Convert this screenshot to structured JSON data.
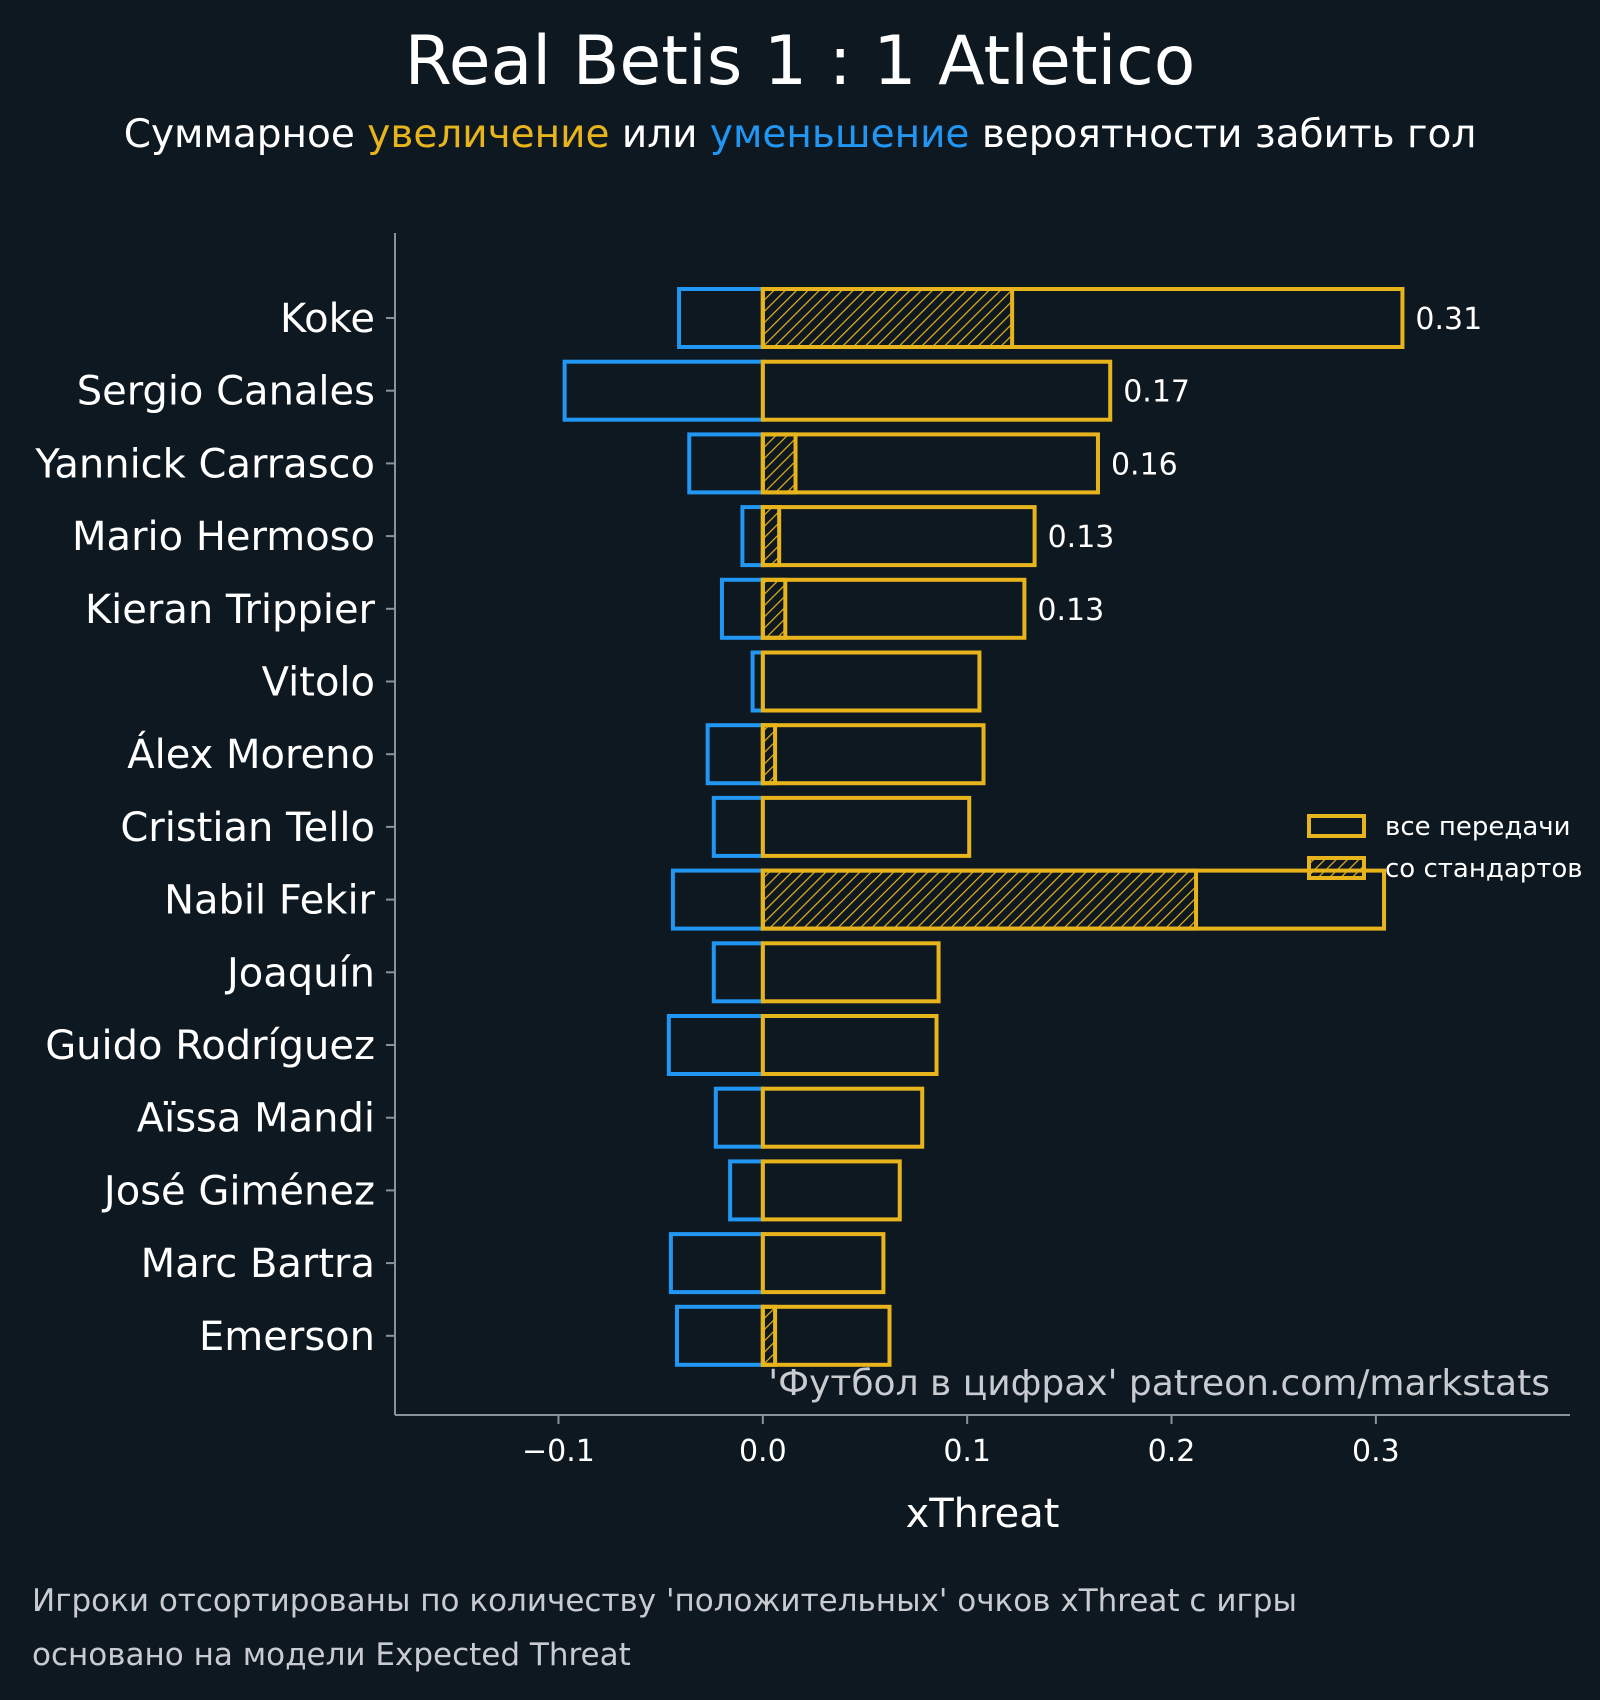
{
  "title": "Real Betis 1 : 1 Atletico",
  "subtitle": {
    "prefix": "Суммарное ",
    "increase": "увеличение",
    "middle": " или ",
    "decrease": "уменьшение",
    "suffix": " вероятности забить гол"
  },
  "colors": {
    "background": "#0e1821",
    "increase": "#e8b41c",
    "decrease": "#2196f3",
    "axis": "#8a9299",
    "text": "#ffffff",
    "muted": "#c8cbd0"
  },
  "chart_data": {
    "type": "bar",
    "orientation": "horizontal",
    "xlabel": "xThreat",
    "xlim": [
      -0.18,
      0.395
    ],
    "xticks": [
      -0.1,
      0.0,
      0.1,
      0.2,
      0.3
    ],
    "xtick_labels": [
      "−0.1",
      "0.0",
      "0.1",
      "0.2",
      "0.3"
    ],
    "categories": [
      "Koke",
      "Sergio Canales",
      "Yannick Carrasco",
      "Mario Hermoso",
      "Kieran Trippier",
      "Vitolo",
      "Álex Moreno",
      "Cristian Tello",
      "Nabil Fekir",
      "Joaquín",
      "Guido Rodríguez",
      "Aïssa Mandi",
      "José Giménez",
      "Marc Bartra",
      "Emerson"
    ],
    "series": [
      {
        "name": "negative",
        "color": "#2196f3",
        "values": [
          -0.041,
          -0.097,
          -0.036,
          -0.01,
          -0.02,
          -0.005,
          -0.027,
          -0.024,
          -0.044,
          -0.024,
          -0.046,
          -0.023,
          -0.016,
          -0.045,
          -0.042
        ]
      },
      {
        "name": "все передачи",
        "color": "#e8b41c",
        "values": [
          0.313,
          0.17,
          0.164,
          0.133,
          0.128,
          0.106,
          0.108,
          0.101,
          0.304,
          0.086,
          0.085,
          0.078,
          0.067,
          0.059,
          0.062
        ]
      },
      {
        "name": "со стандартов",
        "color": "#e8b41c",
        "hatched": true,
        "values": [
          0.122,
          0.0,
          0.016,
          0.008,
          0.011,
          0.0,
          0.006,
          0.0,
          0.212,
          0.0,
          0.0,
          0.0,
          0.0,
          0.0,
          0.006
        ]
      }
    ],
    "value_labels": [
      "0.31",
      "0.17",
      "0.16",
      "0.13",
      "0.13",
      "",
      "",
      "",
      "",
      "",
      "",
      "",
      "",
      "",
      ""
    ],
    "legend": {
      "position": "right",
      "entries": [
        "все передачи",
        "со стандартов"
      ]
    },
    "watermark": "'Футбол в цифрах' patreon.com/markstats"
  },
  "footnotes": [
    "Игроки отсортированы по количеству 'положительных' очков xThreat с игры",
    "основано на модели Expected Threat"
  ]
}
